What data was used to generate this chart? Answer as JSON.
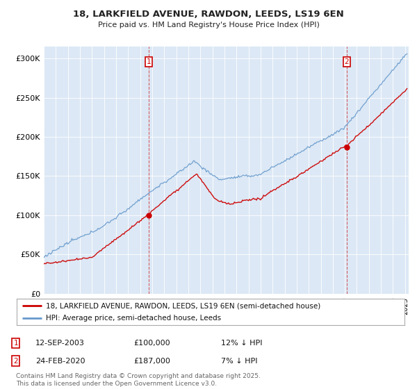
{
  "title": "18, LARKFIELD AVENUE, RAWDON, LEEDS, LS19 6EN",
  "subtitle": "Price paid vs. HM Land Registry's House Price Index (HPI)",
  "ylabel_ticks": [
    "£0",
    "£50K",
    "£100K",
    "£150K",
    "£200K",
    "£250K",
    "£300K"
  ],
  "ytick_values": [
    0,
    50000,
    100000,
    150000,
    200000,
    250000,
    300000
  ],
  "ylim": [
    0,
    315000
  ],
  "xlim_start": 1995.0,
  "xlim_end": 2025.3,
  "legend_line1": "18, LARKFIELD AVENUE, RAWDON, LEEDS, LS19 6EN (semi-detached house)",
  "legend_line2": "HPI: Average price, semi-detached house, Leeds",
  "marker1_date": "12-SEP-2003",
  "marker1_price": "£100,000",
  "marker1_hpi": "12% ↓ HPI",
  "marker1_x": 2003.7,
  "marker1_y": 100000,
  "marker2_date": "24-FEB-2020",
  "marker2_price": "£187,000",
  "marker2_hpi": "7% ↓ HPI",
  "marker2_x": 2020.15,
  "marker2_y": 187000,
  "footer": "Contains HM Land Registry data © Crown copyright and database right 2025.\nThis data is licensed under the Open Government Licence v3.0.",
  "line_color_red": "#cc0000",
  "line_color_blue": "#6699cc",
  "bg_color": "#ffffff",
  "plot_bg_color": "#dce8f5",
  "grid_color": "#ffffff"
}
